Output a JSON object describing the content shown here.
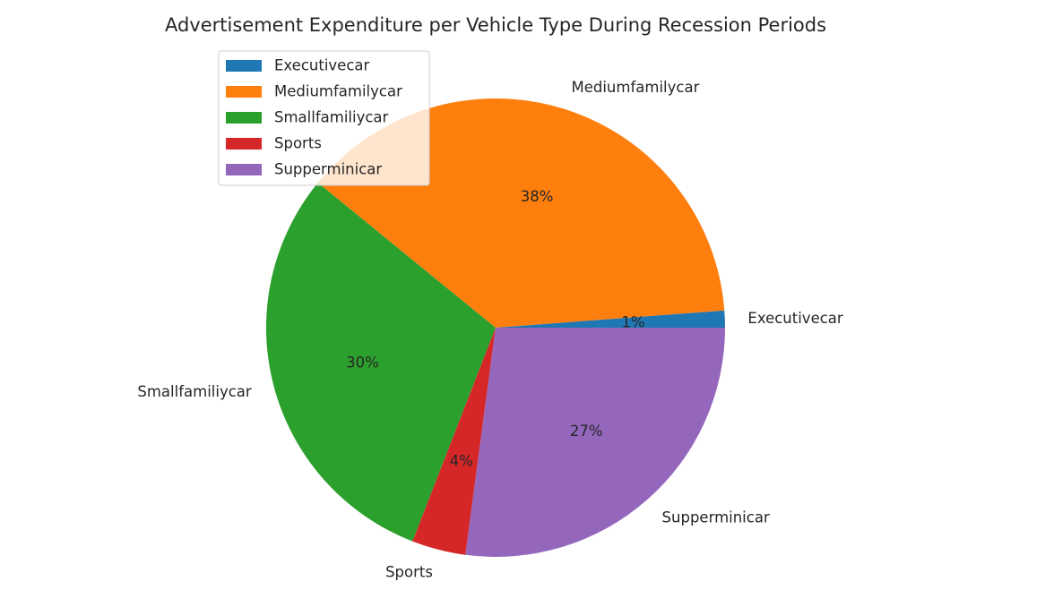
{
  "chart_data": {
    "type": "pie",
    "title": "Advertisement Expenditure per Vehicle Type During Recession Periods",
    "labels": [
      "Executivecar",
      "Mediumfamilycar",
      "Smallfamiliycar",
      "Sports",
      "Supperminicar"
    ],
    "values": [
      1.2,
      37.9,
      30.0,
      3.8,
      27.1
    ],
    "percent_labels": [
      "1%",
      "38%",
      "30%",
      "4%",
      "27%"
    ],
    "colors": [
      "#1f77b4",
      "#ff7f0e",
      "#2ca02c",
      "#d62728",
      "#9467bd"
    ],
    "start_angle_deg": 0,
    "direction": "counterclockwise",
    "legend": {
      "placement": "upper-left",
      "entries": [
        "Executivecar",
        "Mediumfamilycar",
        "Smallfamiliycar",
        "Sports",
        "Supperminicar"
      ]
    }
  }
}
